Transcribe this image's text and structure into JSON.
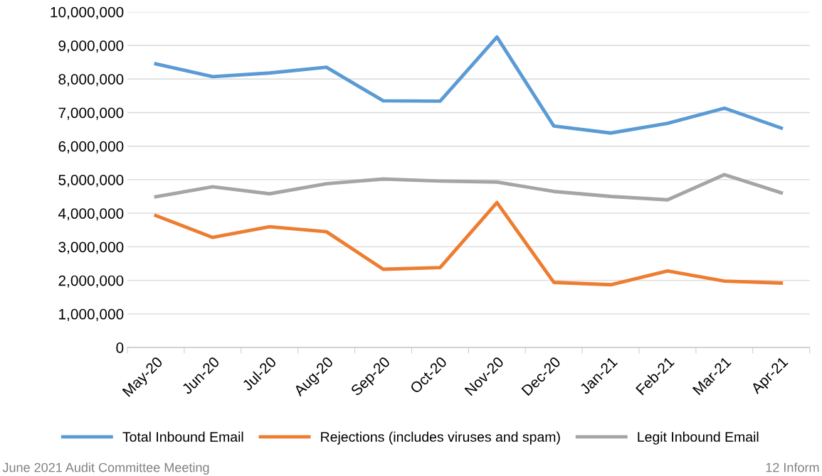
{
  "chart_data": {
    "type": "line",
    "categories": [
      "May-20",
      "Jun-20",
      "Jul-20",
      "Aug-20",
      "Sep-20",
      "Oct-20",
      "Nov-20",
      "Dec-20",
      "Jan-21",
      "Feb-21",
      "Mar-21",
      "Apr-21"
    ],
    "series": [
      {
        "name": "Total Inbound Email",
        "color": "#5b9bd5",
        "values": [
          8450000,
          8070000,
          8180000,
          8350000,
          7350000,
          7340000,
          9250000,
          6600000,
          6390000,
          6680000,
          7130000,
          6540000
        ]
      },
      {
        "name": "Rejections (includes viruses and spam)",
        "color": "#ed7d31",
        "values": [
          3930000,
          3280000,
          3600000,
          3450000,
          2330000,
          2380000,
          4320000,
          1940000,
          1870000,
          2280000,
          1980000,
          1920000
        ]
      },
      {
        "name": "Legit Inbound Email",
        "color": "#a5a5a5",
        "values": [
          4490000,
          4790000,
          4580000,
          4880000,
          5020000,
          4960000,
          4930000,
          4650000,
          4500000,
          4400000,
          5150000,
          4610000
        ]
      }
    ],
    "ylim": [
      0,
      10000000
    ],
    "yticks": [
      {
        "value": 0,
        "label": "0"
      },
      {
        "value": 1000000,
        "label": "1,000,000"
      },
      {
        "value": 2000000,
        "label": "2,000,000"
      },
      {
        "value": 3000000,
        "label": "3,000,000"
      },
      {
        "value": 4000000,
        "label": "4,000,000"
      },
      {
        "value": 5000000,
        "label": "5,000,000"
      },
      {
        "value": 6000000,
        "label": "6,000,000"
      },
      {
        "value": 7000000,
        "label": "7,000,000"
      },
      {
        "value": 8000000,
        "label": "8,000,000"
      },
      {
        "value": 9000000,
        "label": "9,000,000"
      },
      {
        "value": 10000000,
        "label": "10,000,000"
      }
    ],
    "grid": "y",
    "legend": "bottom",
    "marker": "none",
    "line_style": "solid",
    "annotations": [
      "June 2021 Audit Committee Meeting",
      "12 Inform"
    ]
  }
}
